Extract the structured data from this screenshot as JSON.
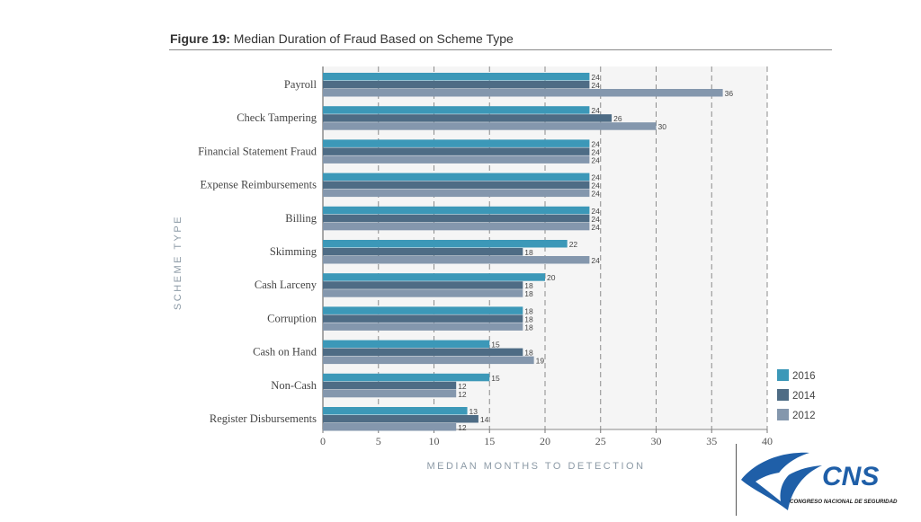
{
  "figure": {
    "label": "Figure 19:",
    "title": "Median Duration of Fraud Based on Scheme Type"
  },
  "colors": {
    "s2016": "#3c98b8",
    "s2014": "#4e6c85",
    "s2012": "#8497ad",
    "plot_bg": "#f5f5f5",
    "grid": "#8c8c8c",
    "logo_blue": "#1f5fa8"
  },
  "chart_data": {
    "type": "bar",
    "orientation": "horizontal",
    "xlabel": "MEDIAN MONTHS TO DETECTION",
    "ylabel": "SCHEME TYPE",
    "xlim": [
      0,
      40
    ],
    "xticks": [
      0,
      5,
      10,
      15,
      20,
      25,
      30,
      35,
      40
    ],
    "grid": "vertical dashed",
    "legend_position": "bottom-right",
    "categories": [
      "Payroll",
      "Check Tampering",
      "Financial Statement Fraud",
      "Expense Reimbursements",
      "Billing",
      "Skimming",
      "Cash Larceny",
      "Corruption",
      "Cash on Hand",
      "Non-Cash",
      "Register Disbursements"
    ],
    "series": [
      {
        "name": "2016",
        "values": [
          24,
          24,
          24,
          24,
          24,
          22,
          20,
          18,
          15,
          15,
          13
        ]
      },
      {
        "name": "2014",
        "values": [
          24,
          26,
          24,
          24,
          24,
          18,
          18,
          18,
          18,
          12,
          14
        ]
      },
      {
        "name": "2012",
        "values": [
          36,
          30,
          24,
          24,
          24,
          24,
          18,
          18,
          19,
          12,
          12
        ]
      }
    ]
  },
  "logo": {
    "text": "CNS",
    "subtitle": "CONGRESO NACIONAL DE SEGURIDAD"
  }
}
